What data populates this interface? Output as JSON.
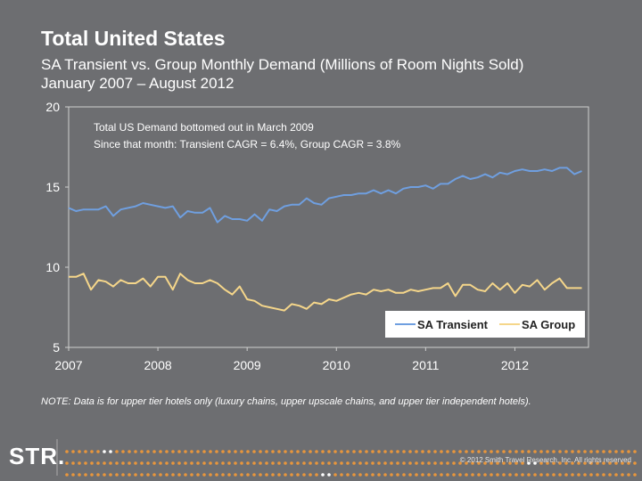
{
  "header": {
    "title": "Total United States",
    "subtitle_line1": "SA Transient vs. Group Monthly Demand (Millions of Room Nights Sold)",
    "subtitle_line2": "January 2007 – August 2012"
  },
  "annotation": {
    "line1": "Total US Demand bottomed out in March 2009",
    "line2": "Since that month: Transient CAGR = 6.4%, Group CAGR = 3.8%"
  },
  "note": "NOTE: Data is for upper tier hotels only (luxury chains, upper upscale chains, and upper tier independent hotels).",
  "footer": {
    "logo": "STR.",
    "copyright": "© 2012 Smith Travel Research, Inc. All rights reserved"
  },
  "colors": {
    "background": "#6d6e71",
    "plot_area": "#6d6e71",
    "transient": "#6f9fe0",
    "group": "#f5d68a",
    "dots_orange": "#e8963c",
    "dots_white": "#ffffff"
  },
  "chart_data": {
    "type": "line",
    "ylim": [
      5,
      20
    ],
    "yticks": [
      5,
      10,
      15,
      20
    ],
    "x_start": "2007-01",
    "x_end": "2012-08",
    "xtick_labels": [
      "2007",
      "2008",
      "2009",
      "2010",
      "2011",
      "2012"
    ],
    "legend_position": "bottom-right",
    "grid": false,
    "series": [
      {
        "name": "SA Transient",
        "values": [
          13.7,
          13.5,
          13.6,
          13.6,
          13.6,
          13.8,
          13.2,
          13.6,
          13.7,
          13.8,
          14.0,
          13.9,
          13.8,
          13.7,
          13.8,
          13.1,
          13.5,
          13.4,
          13.4,
          13.7,
          12.8,
          13.2,
          13.0,
          13.0,
          12.9,
          13.3,
          12.9,
          13.6,
          13.5,
          13.8,
          13.9,
          13.9,
          14.3,
          14.0,
          13.9,
          14.3,
          14.4,
          14.5,
          14.5,
          14.6,
          14.6,
          14.8,
          14.6,
          14.8,
          14.6,
          14.9,
          15.0,
          15.0,
          15.1,
          14.9,
          15.2,
          15.2,
          15.5,
          15.7,
          15.5,
          15.6,
          15.8,
          15.6,
          15.9,
          15.8,
          16.0,
          16.1,
          16.0,
          16.0,
          16.1,
          16.0,
          16.2,
          16.2,
          15.8,
          16.0
        ]
      },
      {
        "name": "SA Group",
        "values": [
          9.4,
          9.4,
          9.6,
          8.6,
          9.2,
          9.1,
          8.8,
          9.2,
          9.0,
          9.0,
          9.3,
          8.8,
          9.4,
          9.4,
          8.6,
          9.6,
          9.2,
          9.0,
          9.0,
          9.2,
          9.0,
          8.6,
          8.3,
          8.8,
          8.0,
          7.9,
          7.6,
          7.5,
          7.4,
          7.3,
          7.7,
          7.6,
          7.4,
          7.8,
          7.7,
          8.0,
          7.9,
          8.1,
          8.3,
          8.4,
          8.3,
          8.6,
          8.5,
          8.6,
          8.4,
          8.4,
          8.6,
          8.5,
          8.6,
          8.7,
          8.7,
          9.0,
          8.2,
          8.9,
          8.9,
          8.6,
          8.5,
          9.0,
          8.6,
          9.0,
          8.4,
          8.9,
          8.8,
          9.2,
          8.6,
          9.0,
          9.3,
          8.7,
          8.7,
          8.7
        ]
      }
    ]
  }
}
